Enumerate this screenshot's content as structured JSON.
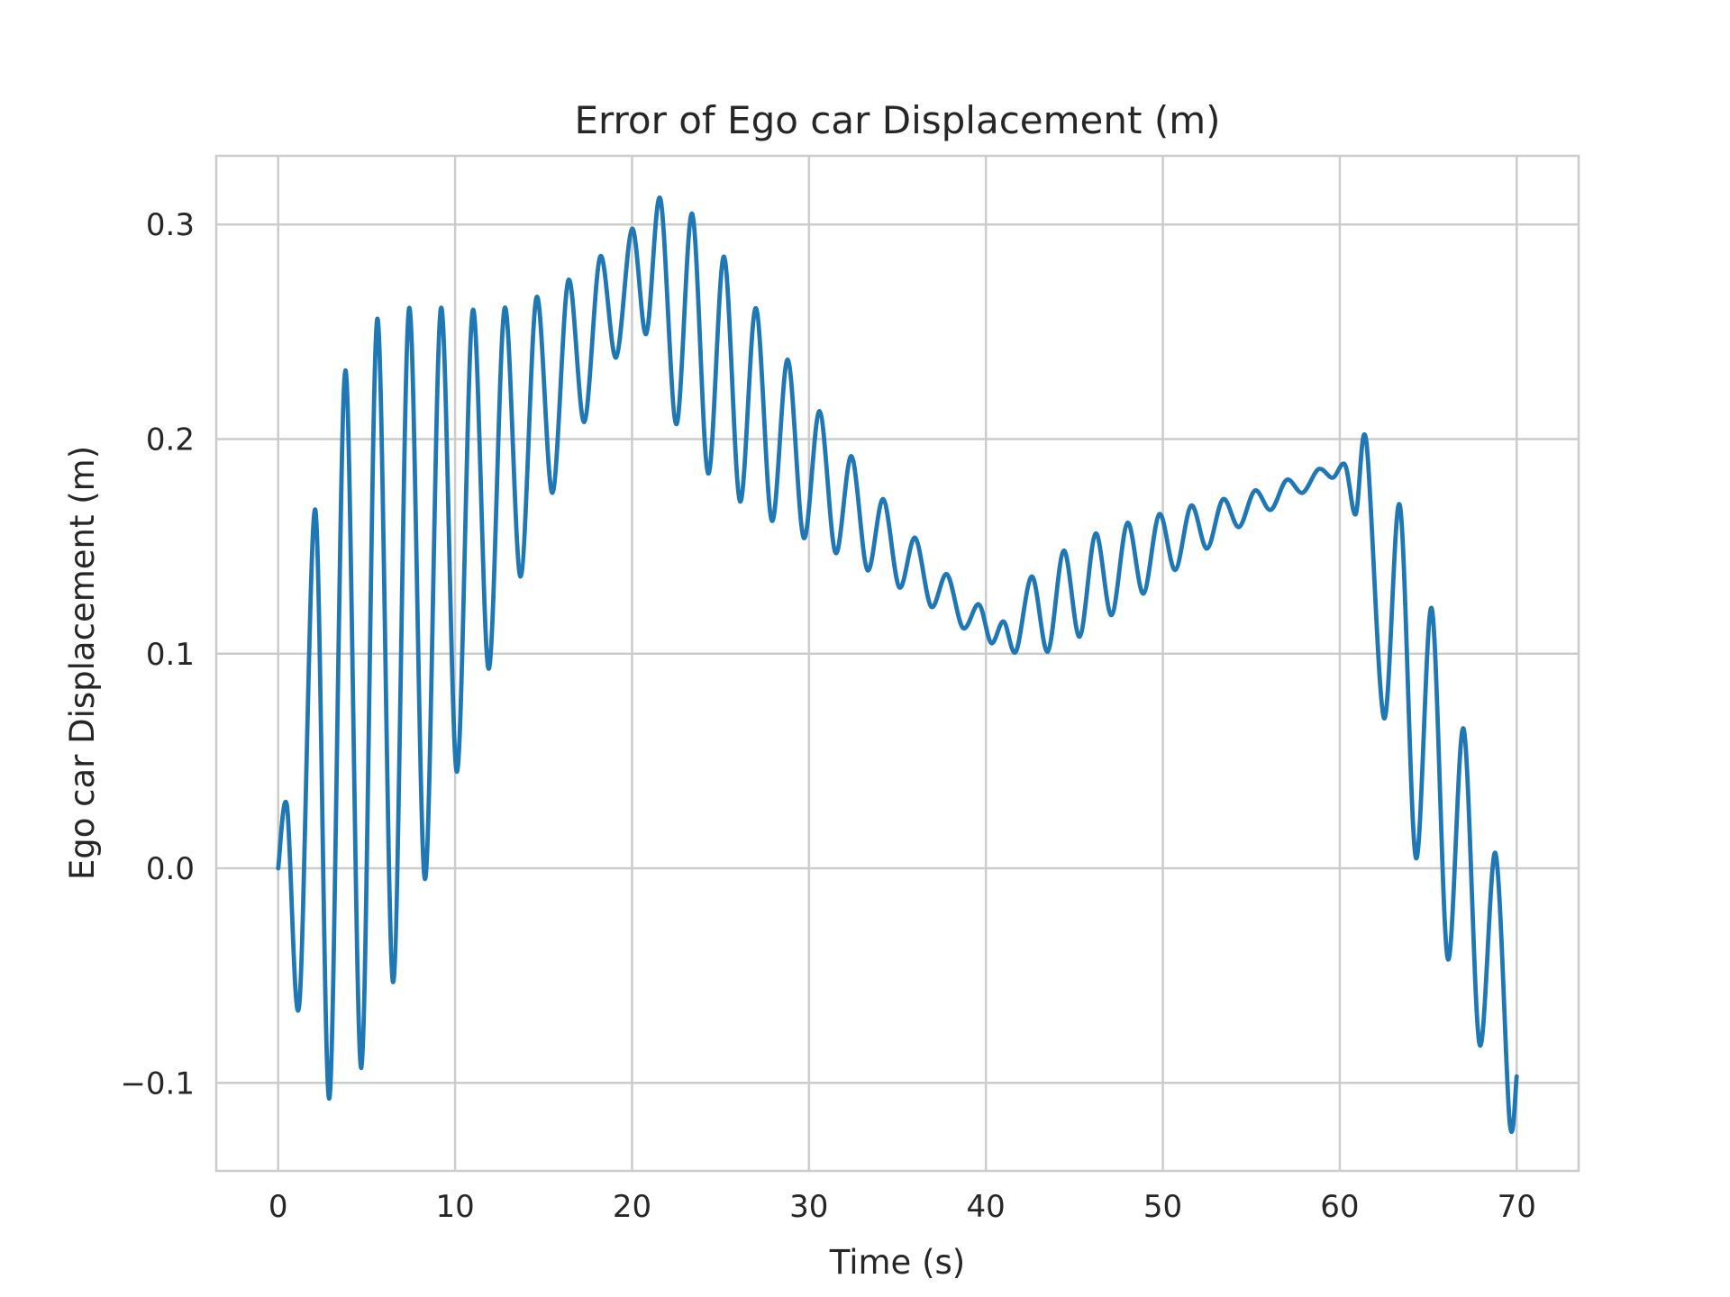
{
  "chart_data": {
    "type": "line",
    "title": "Error of Ego car Displacement (m)",
    "xlabel": "Time (s)",
    "ylabel": "Ego car Displacement (m)",
    "xlim": [
      -3.5,
      73.5
    ],
    "ylim": [
      -0.141,
      0.332
    ],
    "xticks": [
      0,
      10,
      20,
      30,
      40,
      50,
      60,
      70
    ],
    "xtick_labels": [
      "0",
      "10",
      "20",
      "30",
      "40",
      "50",
      "60",
      "70"
    ],
    "yticks": [
      -0.1,
      0.0,
      0.1,
      0.2,
      0.3
    ],
    "ytick_labels": [
      "−0.1",
      "0.0",
      "0.1",
      "0.2",
      "0.3"
    ],
    "grid": true,
    "legend": "none",
    "series": [
      {
        "color": "#1f77b4",
        "x": [
          0,
          0.5,
          1.2,
          2.1,
          2.9,
          3.8,
          4.7,
          5.6,
          6.5,
          7.4,
          8.3,
          9.2,
          10.1,
          11.0,
          11.9,
          12.8,
          13.7,
          14.6,
          15.5,
          16.4,
          17.3,
          18.2,
          19.1,
          20.0,
          20.8,
          21.6,
          22.5,
          23.4,
          24.3,
          25.2,
          26.1,
          27.0,
          27.9,
          28.8,
          29.7,
          30.6,
          31.5,
          32.4,
          33.3,
          34.2,
          35.1,
          36.0,
          36.9,
          37.8,
          38.7,
          39.6,
          40.3,
          41.0,
          41.7,
          42.6,
          43.5,
          44.4,
          45.3,
          46.2,
          47.1,
          48.0,
          48.9,
          49.8,
          50.7,
          51.6,
          52.5,
          53.4,
          54.3,
          55.2,
          56.1,
          57.0,
          57.9,
          58.8,
          59.6,
          60.3,
          60.9,
          61.5,
          62.5,
          63.4,
          64.3,
          65.2,
          66.1,
          67.0,
          67.9,
          68.8,
          69.6,
          70.0
        ],
        "y": [
          0.0,
          0.029,
          -0.063,
          0.167,
          -0.107,
          0.232,
          -0.093,
          0.256,
          -0.053,
          0.261,
          -0.005,
          0.261,
          0.045,
          0.26,
          0.093,
          0.261,
          0.136,
          0.266,
          0.175,
          0.274,
          0.208,
          0.285,
          0.238,
          0.298,
          0.249,
          0.312,
          0.207,
          0.305,
          0.184,
          0.285,
          0.171,
          0.261,
          0.162,
          0.237,
          0.154,
          0.213,
          0.147,
          0.192,
          0.139,
          0.172,
          0.131,
          0.154,
          0.122,
          0.137,
          0.112,
          0.123,
          0.105,
          0.115,
          0.101,
          0.136,
          0.101,
          0.148,
          0.108,
          0.156,
          0.118,
          0.161,
          0.128,
          0.165,
          0.139,
          0.169,
          0.149,
          0.172,
          0.159,
          0.176,
          0.167,
          0.181,
          0.175,
          0.186,
          0.182,
          0.188,
          0.165,
          0.199,
          0.07,
          0.169,
          0.005,
          0.121,
          -0.042,
          0.065,
          -0.082,
          0.007,
          -0.118,
          -0.097
        ]
      }
    ]
  }
}
